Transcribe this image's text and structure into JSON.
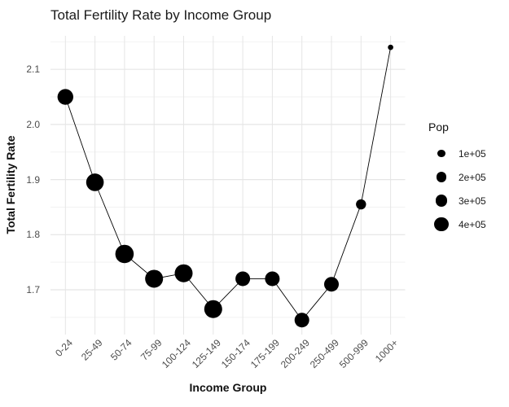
{
  "chart_data": {
    "type": "line",
    "subtype": "bubble-scatter-with-line",
    "title": "Total Fertility Rate by Income Group",
    "xlabel": "Income Group",
    "ylabel": "Total Fertility Rate",
    "categories": [
      "0-24",
      "25-49",
      "50-74",
      "75-99",
      "100-124",
      "125-149",
      "150-174",
      "175-199",
      "200-249",
      "250-499",
      "500-999",
      "1000+"
    ],
    "series": [
      {
        "name": "Total Fertility Rate",
        "values": [
          2.05,
          1.895,
          1.765,
          1.72,
          1.73,
          1.665,
          1.72,
          1.72,
          1.645,
          1.71,
          1.855,
          2.14
        ],
        "point_radius_px": [
          9.7,
          10.8,
          11.3,
          11,
          11,
          11,
          9,
          9,
          9,
          9,
          6.2,
          3.3
        ],
        "pop_approx": [
          500000,
          640000,
          700000,
          660000,
          660000,
          660000,
          430000,
          430000,
          430000,
          430000,
          190000,
          40000
        ]
      }
    ],
    "y_ticks": [
      1.7,
      1.8,
      1.9,
      2.0,
      2.1
    ],
    "y_minor_ticks": [
      1.65,
      1.75,
      1.85,
      1.95,
      2.05,
      2.15
    ],
    "ylim": [
      1.62,
      2.16
    ],
    "grid": "major-and-minor, light gray on white",
    "legend": {
      "title": "Pop",
      "position": "right",
      "entries": [
        {
          "label": "1e+05",
          "radius_px": 4.7
        },
        {
          "label": "2e+05",
          "radius_px": 6.3
        },
        {
          "label": "3e+05",
          "radius_px": 7.4
        },
        {
          "label": "4e+05",
          "radius_px": 8.7
        }
      ]
    },
    "colors": {
      "point": "#000000",
      "line": "#000000",
      "grid_major": "#e5e5e5",
      "grid_minor": "#f2f2f2",
      "axis_text": "#4d4d4d",
      "title_text": "#1a1a1a"
    }
  }
}
